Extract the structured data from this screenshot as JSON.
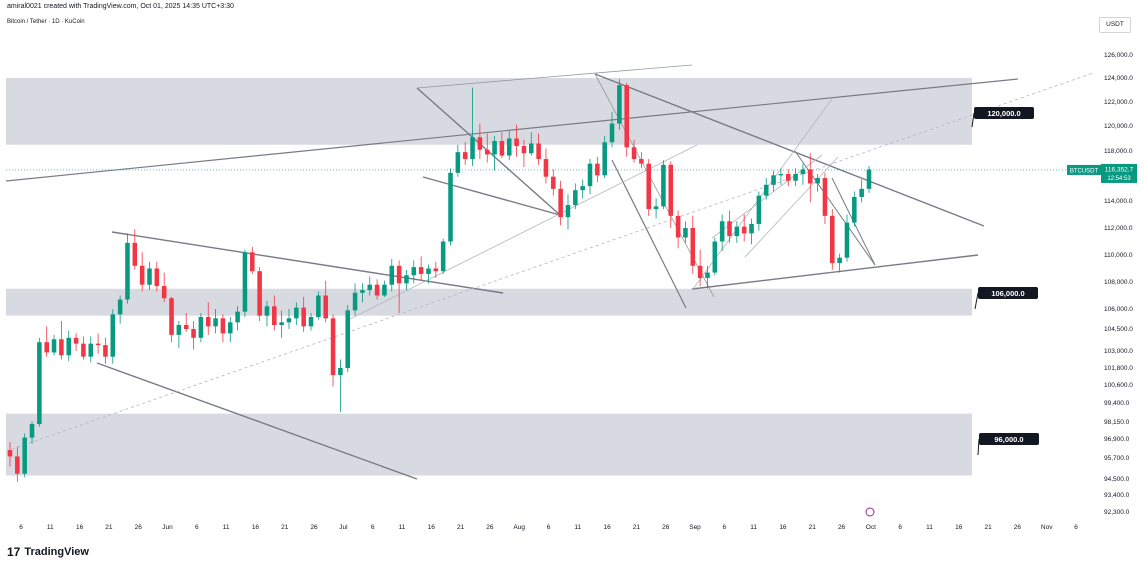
{
  "header": {
    "caption": "amiral0021 created with TradingView.com, Oct 01, 2025 14:35 UTC+3:30",
    "symbol": "Bitcoin / Tether · 1D · KuCoin",
    "currency": "USDT",
    "logo_text": "TradingView",
    "logo_mark": "17"
  },
  "chart_data": {
    "type": "candlestick",
    "y_axis": {
      "ticks": [
        "126,000.0",
        "124,000.0",
        "122,000.0",
        "120,000.0",
        "118,000.0",
        "116,000.0",
        "114,000.0",
        "112,000.0",
        "110,000.0",
        "108,000.0",
        "106,000.0",
        "104,500.0",
        "103,000.0",
        "101,800.0",
        "100,600.0",
        "99,400.0",
        "98,150.0",
        "96,900.0",
        "95,700.0",
        "94,500.0",
        "93,400.0",
        "92,300.0"
      ]
    },
    "x_axis": {
      "ticks": [
        "6",
        "11",
        "16",
        "21",
        "26",
        "Jun",
        "6",
        "11",
        "16",
        "21",
        "26",
        "Jul",
        "6",
        "11",
        "16",
        "21",
        "26",
        "Aug",
        "6",
        "11",
        "16",
        "21",
        "26",
        "Sep",
        "6",
        "11",
        "16",
        "21",
        "26",
        "Oct",
        "6",
        "11",
        "16",
        "21",
        "26",
        "Nov",
        "6"
      ]
    },
    "zones": [
      {
        "label": "120,000.0",
        "low": 118500,
        "high": 124000
      },
      {
        "label": "106,000.0",
        "low": 105500,
        "high": 107500
      },
      {
        "label": "96,000.0",
        "low": 94700,
        "high": 98700
      }
    ],
    "current_price": {
      "symbol": "BTCUSDT",
      "price": "116,352.7",
      "countdown": "12:54:53"
    },
    "candles": [
      [
        96200,
        96700,
        95200,
        95800
      ],
      [
        95800,
        96400,
        94300,
        94800
      ],
      [
        94800,
        97300,
        94600,
        97000
      ],
      [
        97000,
        98200,
        96600,
        98000
      ],
      [
        98000,
        103900,
        97800,
        103600
      ],
      [
        103600,
        104700,
        102600,
        102900
      ],
      [
        102900,
        104100,
        102700,
        103800
      ],
      [
        103800,
        105100,
        102400,
        102700
      ],
      [
        102700,
        104400,
        102300,
        103900
      ],
      [
        103900,
        104200,
        103000,
        103500
      ],
      [
        103500,
        104000,
        102400,
        102600
      ],
      [
        102600,
        104000,
        102200,
        103500
      ],
      [
        103500,
        104200,
        102800,
        103400
      ],
      [
        103400,
        103900,
        102100,
        102600
      ],
      [
        102600,
        106000,
        102100,
        105600
      ],
      [
        105600,
        107000,
        104900,
        106700
      ],
      [
        106700,
        111600,
        106400,
        110900
      ],
      [
        110900,
        111900,
        108900,
        109200
      ],
      [
        109200,
        110200,
        107300,
        107800
      ],
      [
        107800,
        109500,
        107400,
        109000
      ],
      [
        109000,
        109500,
        107300,
        107700
      ],
      [
        107700,
        108700,
        106500,
        106800
      ],
      [
        106800,
        106900,
        103600,
        104100
      ],
      [
        104100,
        105100,
        103200,
        104800
      ],
      [
        104800,
        105700,
        104300,
        104500
      ],
      [
        104500,
        105100,
        103100,
        103900
      ],
      [
        103900,
        105700,
        103600,
        105400
      ],
      [
        105400,
        106500,
        104100,
        104700
      ],
      [
        104700,
        106000,
        104200,
        105300
      ],
      [
        105300,
        105600,
        103600,
        104200
      ],
      [
        104200,
        105400,
        103600,
        105000
      ],
      [
        105000,
        106200,
        104400,
        105800
      ],
      [
        105800,
        110400,
        105400,
        110200
      ],
      [
        110200,
        110600,
        108600,
        108800
      ],
      [
        108800,
        109100,
        105100,
        105500
      ],
      [
        105500,
        106600,
        104700,
        106200
      ],
      [
        106200,
        107000,
        104400,
        104800
      ],
      [
        104800,
        105900,
        103900,
        105000
      ],
      [
        105000,
        106000,
        104500,
        105300
      ],
      [
        105300,
        106500,
        104800,
        106100
      ],
      [
        106100,
        106900,
        104300,
        104700
      ],
      [
        104700,
        105700,
        104400,
        105400
      ],
      [
        105400,
        107300,
        105200,
        107000
      ],
      [
        107000,
        108100,
        105000,
        105300
      ],
      [
        105300,
        105600,
        100500,
        101300
      ],
      [
        101300,
        102400,
        98800,
        101800
      ],
      [
        101800,
        106300,
        101500,
        105900
      ],
      [
        105900,
        107900,
        105500,
        107200
      ],
      [
        107200,
        107900,
        106500,
        107400
      ],
      [
        107400,
        108400,
        107000,
        107800
      ],
      [
        107800,
        108200,
        106700,
        107000
      ],
      [
        107000,
        108100,
        106900,
        107800
      ],
      [
        107800,
        109700,
        107300,
        109200
      ],
      [
        109200,
        109600,
        105700,
        107900
      ],
      [
        107900,
        108900,
        107400,
        108500
      ],
      [
        108500,
        109600,
        107900,
        109100
      ],
      [
        109100,
        109900,
        108100,
        108600
      ],
      [
        108600,
        109300,
        107900,
        109000
      ],
      [
        109000,
        109500,
        108300,
        108800
      ],
      [
        108800,
        111200,
        108600,
        111000
      ],
      [
        111000,
        116500,
        110700,
        116100
      ],
      [
        116100,
        118500,
        115800,
        117900
      ],
      [
        117900,
        118700,
        116800,
        117300
      ],
      [
        117300,
        123200,
        116700,
        119100
      ],
      [
        119100,
        120200,
        117300,
        118100
      ],
      [
        118100,
        119400,
        117000,
        117700
      ],
      [
        117700,
        119200,
        116300,
        118800
      ],
      [
        118800,
        119500,
        117400,
        117600
      ],
      [
        117600,
        119600,
        117200,
        119000
      ],
      [
        119000,
        120100,
        117500,
        118400
      ],
      [
        118400,
        118900,
        116600,
        117800
      ],
      [
        117800,
        119500,
        117600,
        118600
      ],
      [
        118600,
        119400,
        116800,
        117300
      ],
      [
        117300,
        118200,
        115300,
        115800
      ],
      [
        115800,
        116400,
        114400,
        114900
      ],
      [
        114900,
        115500,
        112200,
        112800
      ],
      [
        112800,
        114500,
        111900,
        113700
      ],
      [
        113700,
        115300,
        113400,
        114800
      ],
      [
        114800,
        115600,
        114200,
        115100
      ],
      [
        115100,
        117300,
        114500,
        116900
      ],
      [
        116900,
        117500,
        115400,
        115900
      ],
      [
        115900,
        119200,
        115700,
        118700
      ],
      [
        118700,
        121200,
        118300,
        120200
      ],
      [
        120200,
        123900,
        119700,
        123400
      ],
      [
        123400,
        123600,
        117500,
        118300
      ],
      [
        118300,
        118900,
        117000,
        117300
      ],
      [
        117300,
        117900,
        116500,
        116900
      ],
      [
        116900,
        117300,
        112900,
        113400
      ],
      [
        113400,
        114200,
        112700,
        113600
      ],
      [
        113600,
        117200,
        113400,
        116800
      ],
      [
        116800,
        117100,
        112000,
        112900
      ],
      [
        112900,
        113300,
        110500,
        111300
      ],
      [
        111300,
        112500,
        110900,
        112000
      ],
      [
        112000,
        112900,
        108600,
        109200
      ],
      [
        109200,
        110400,
        107700,
        108300
      ],
      [
        108300,
        109200,
        107500,
        108700
      ],
      [
        108700,
        111300,
        108500,
        111000
      ],
      [
        111000,
        113000,
        110300,
        112500
      ],
      [
        112500,
        113300,
        110900,
        111400
      ],
      [
        111400,
        112500,
        110900,
        112100
      ],
      [
        112100,
        113000,
        111000,
        111600
      ],
      [
        111600,
        112700,
        110800,
        112300
      ],
      [
        112300,
        114700,
        111800,
        114400
      ],
      [
        114400,
        115700,
        114100,
        115200
      ],
      [
        115200,
        116300,
        114700,
        115900
      ],
      [
        115900,
        116500,
        115200,
        116000
      ],
      [
        116000,
        116400,
        115100,
        115500
      ],
      [
        115500,
        116500,
        115100,
        116000
      ],
      [
        116000,
        116900,
        115200,
        116400
      ],
      [
        116400,
        117800,
        113900,
        115300
      ],
      [
        115300,
        116000,
        114700,
        115700
      ],
      [
        115700,
        116100,
        112300,
        112900
      ],
      [
        112900,
        113400,
        108900,
        109400
      ],
      [
        109400,
        110100,
        108700,
        109800
      ],
      [
        109800,
        113000,
        109500,
        112400
      ],
      [
        112400,
        114700,
        112100,
        114300
      ],
      [
        114300,
        115600,
        113900,
        114900
      ],
      [
        114900,
        116700,
        114600,
        116400
      ]
    ]
  }
}
